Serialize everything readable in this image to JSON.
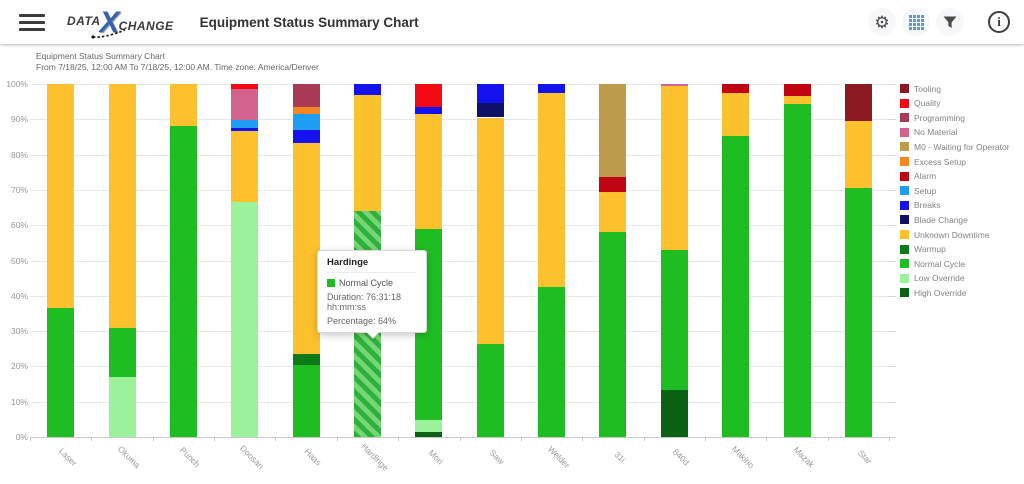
{
  "header": {
    "title": "Equipment Status Summary Chart",
    "logo": {
      "part1": "DATA",
      "x_letter": "X",
      "part2": "CHANGE"
    }
  },
  "report": {
    "title": "Equipment Status Summary Chart",
    "subtitle": "From 7/18/25, 12:00 AM To 7/18/25, 12:00 AM. Time zone: America/Denver"
  },
  "tooltip": {
    "title": "Hardinge",
    "series": "Normal Cycle",
    "series_color": "#1ebe23",
    "duration": "Duration: 76:31:18 hh:mm:ss",
    "percentage": "Percentage: 64%"
  },
  "chart_data": {
    "type": "bar",
    "stacked": true,
    "unit": "percent of time",
    "ylim": [
      0,
      100
    ],
    "grid": true,
    "legend_position": "right",
    "y_ticks": [
      "0%",
      "10%",
      "20%",
      "30%",
      "40%",
      "50%",
      "60%",
      "70%",
      "80%",
      "90%",
      "100%"
    ],
    "statuses": [
      {
        "name": "Tooling",
        "color": "#8b1a22"
      },
      {
        "name": "Quality",
        "color": "#f40a12"
      },
      {
        "name": "Programming",
        "color": "#a73b55"
      },
      {
        "name": "No Material",
        "color": "#d2638f"
      },
      {
        "name": "M0 - Waiting for Operator",
        "color": "#bd9b4b"
      },
      {
        "name": "Excess Setup",
        "color": "#f6861f"
      },
      {
        "name": "Alarm",
        "color": "#c00512"
      },
      {
        "name": "Setup",
        "color": "#1e9ef4"
      },
      {
        "name": "Breaks",
        "color": "#1412ef"
      },
      {
        "name": "Blade Change",
        "color": "#0f1166"
      },
      {
        "name": "Unknown Downtime",
        "color": "#fcc12d"
      },
      {
        "name": "Warmup",
        "color": "#0c7a16"
      },
      {
        "name": "Normal Cycle",
        "color": "#1ebe23"
      },
      {
        "name": "Low Override",
        "color": "#9bf29b"
      },
      {
        "name": "High Override",
        "color": "#0a6013"
      }
    ],
    "categories": [
      "Laser",
      "Okuma",
      "Punch",
      "Doosan",
      "Haas",
      "Hardinge",
      "Mori",
      "Saw",
      "Welder",
      "31i",
      "840d",
      "Makino",
      "Mazak",
      "Star"
    ],
    "bars": [
      {
        "category": "Laser",
        "segments": [
          {
            "status": "Normal Cycle",
            "pct": 36.5
          },
          {
            "status": "Unknown Downtime",
            "pct": 63.5
          }
        ]
      },
      {
        "category": "Okuma",
        "segments": [
          {
            "status": "Low Override",
            "pct": 17
          },
          {
            "status": "Normal Cycle",
            "pct": 14
          },
          {
            "status": "Unknown Downtime",
            "pct": 69
          }
        ]
      },
      {
        "category": "Punch",
        "segments": [
          {
            "status": "Normal Cycle",
            "pct": 88
          },
          {
            "status": "Unknown Downtime",
            "pct": 12
          }
        ]
      },
      {
        "category": "Doosan",
        "segments": [
          {
            "status": "Low Override",
            "pct": 66.5
          },
          {
            "status": "Unknown Downtime",
            "pct": 20.2
          },
          {
            "status": "Breaks",
            "pct": 0.9
          },
          {
            "status": "Setup",
            "pct": 2.3
          },
          {
            "status": "No Material",
            "pct": 8.7
          },
          {
            "status": "Quality",
            "pct": 1.4
          }
        ]
      },
      {
        "category": "Haas",
        "segments": [
          {
            "status": "Normal Cycle",
            "pct": 20.4
          },
          {
            "status": "Warmup",
            "pct": 3.1
          },
          {
            "status": "Unknown Downtime",
            "pct": 59.8
          },
          {
            "status": "Breaks",
            "pct": 3.7
          },
          {
            "status": "Setup",
            "pct": 4.5
          },
          {
            "status": "Excess Setup",
            "pct": 2.0
          },
          {
            "status": "Programming",
            "pct": 6.5
          }
        ]
      },
      {
        "category": "Hardinge",
        "segments": [
          {
            "status": "Normal Cycle",
            "pct": 64,
            "highlighted": true
          },
          {
            "status": "Unknown Downtime",
            "pct": 33
          },
          {
            "status": "Breaks",
            "pct": 3
          }
        ]
      },
      {
        "category": "Mori",
        "segments": [
          {
            "status": "High Override",
            "pct": 1.4
          },
          {
            "status": "Low Override",
            "pct": 3.4
          },
          {
            "status": "Normal Cycle",
            "pct": 54.2
          },
          {
            "status": "Unknown Downtime",
            "pct": 32.5
          },
          {
            "status": "Breaks",
            "pct": 2.0
          },
          {
            "status": "Quality",
            "pct": 6.5
          }
        ]
      },
      {
        "category": "Saw",
        "segments": [
          {
            "status": "Normal Cycle",
            "pct": 26.3
          },
          {
            "status": "Unknown Downtime",
            "pct": 64.2
          },
          {
            "status": "Blade Change",
            "pct": 4.0
          },
          {
            "status": "Breaks",
            "pct": 5.5
          }
        ]
      },
      {
        "category": "Welder",
        "segments": [
          {
            "status": "Normal Cycle",
            "pct": 42.5
          },
          {
            "status": "Unknown Downtime",
            "pct": 54.9
          },
          {
            "status": "Breaks",
            "pct": 2.6
          }
        ]
      },
      {
        "category": "31i",
        "segments": [
          {
            "status": "Normal Cycle",
            "pct": 58
          },
          {
            "status": "Unknown Downtime",
            "pct": 11.4
          },
          {
            "status": "Alarm",
            "pct": 4.2
          },
          {
            "status": "M0 - Waiting for Operator",
            "pct": 26.4
          }
        ]
      },
      {
        "category": "840d",
        "segments": [
          {
            "status": "High Override",
            "pct": 13.3
          },
          {
            "status": "Normal Cycle",
            "pct": 39.7
          },
          {
            "status": "Unknown Downtime",
            "pct": 46.5
          },
          {
            "status": "No Material",
            "pct": 0.5
          }
        ]
      },
      {
        "category": "Makino",
        "segments": [
          {
            "status": "Normal Cycle",
            "pct": 85.3
          },
          {
            "status": "Unknown Downtime",
            "pct": 12.1
          },
          {
            "status": "Alarm",
            "pct": 2.6
          }
        ]
      },
      {
        "category": "Mazak",
        "segments": [
          {
            "status": "Normal Cycle",
            "pct": 94.3
          },
          {
            "status": "Unknown Downtime",
            "pct": 2.3
          },
          {
            "status": "Alarm",
            "pct": 3.4
          }
        ]
      },
      {
        "category": "Star",
        "segments": [
          {
            "status": "Normal Cycle",
            "pct": 70.5
          },
          {
            "status": "Unknown Downtime",
            "pct": 19.1
          },
          {
            "status": "Tooling",
            "pct": 10.4
          }
        ]
      }
    ],
    "highlight": {
      "category": "Hardinge",
      "status": "Normal Cycle",
      "duration": "76:31:18",
      "percentage": 64
    }
  }
}
